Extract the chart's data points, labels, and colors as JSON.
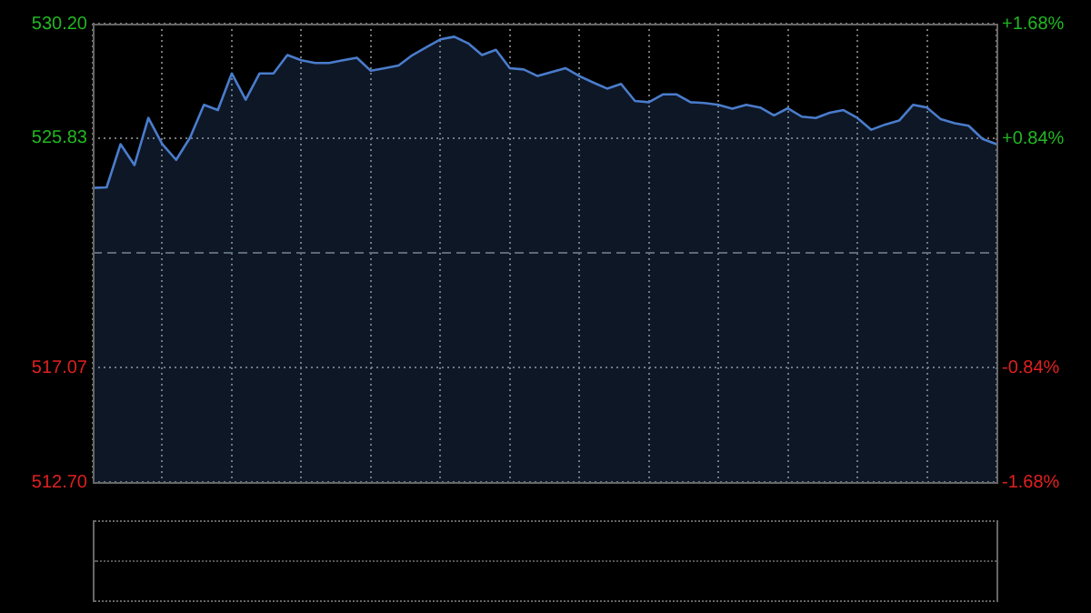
{
  "chart_data": {
    "type": "area",
    "categories": [
      null,
      null,
      null,
      null,
      null,
      null,
      null,
      null,
      null,
      null,
      null,
      null,
      null,
      null,
      null,
      null,
      null,
      null,
      null,
      null,
      null,
      null,
      null,
      null,
      null,
      null,
      null,
      null,
      null,
      null,
      null,
      null,
      null,
      null,
      null,
      null,
      null,
      null,
      null,
      null,
      null,
      null,
      null,
      null,
      null,
      null,
      null,
      null,
      null,
      null,
      null,
      null,
      null,
      null,
      null,
      null,
      null,
      null,
      null,
      null,
      null,
      null,
      null,
      null,
      null,
      null
    ],
    "series": [
      {
        "color": "#4a7ccc",
        "values": [
          523.93,
          523.95,
          525.6,
          524.8,
          526.6,
          525.6,
          525.0,
          525.85,
          527.1,
          526.9,
          528.3,
          527.3,
          528.3,
          528.3,
          529.0,
          528.8,
          528.7,
          528.7,
          528.8,
          528.9,
          528.4,
          528.5,
          528.6,
          529.0,
          529.3,
          529.6,
          529.7,
          529.45,
          529.0,
          529.2,
          528.5,
          528.45,
          528.2,
          528.35,
          528.5,
          528.2,
          527.95,
          527.72,
          527.9,
          527.25,
          527.2,
          527.5,
          527.5,
          527.2,
          527.17,
          527.1,
          526.95,
          527.1,
          527.0,
          526.7,
          526.97,
          526.65,
          526.6,
          526.8,
          526.9,
          526.6,
          526.15,
          526.35,
          526.5,
          527.1,
          527.0,
          526.55,
          526.4,
          526.3,
          525.8,
          525.6
        ]
      }
    ],
    "ylim": [
      512.7,
      530.2
    ],
    "yticks": [
      {
        "value": 512.7,
        "label": "512.70"
      },
      {
        "value": 517.07,
        "label": "517.07"
      },
      {
        "value": 525.83,
        "label": "525.83"
      },
      {
        "value": 530.2,
        "label": "530.20"
      }
    ],
    "y2lim": [
      -1.68,
      1.68
    ],
    "y2ticks": [
      {
        "value": -1.68,
        "label": "-1.68%"
      },
      {
        "value": -0.84,
        "label": "-0.84%"
      },
      {
        "value": 0.84,
        "label": "+0.84%"
      },
      {
        "value": 1.68,
        "label": "+1.68%"
      }
    ],
    "ref_lines": [
      {
        "axis": "y",
        "value": 521.45,
        "line_style": "dashed",
        "color": "#5a6a7a"
      }
    ],
    "grid": true,
    "legend": false,
    "tick_labels": "y"
  }
}
